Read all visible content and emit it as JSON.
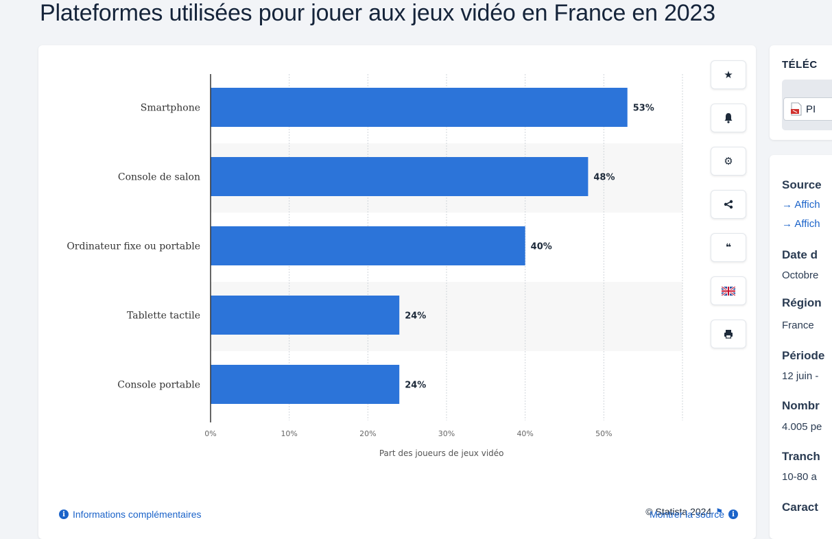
{
  "page": {
    "title": "Plateformes utilisées pour jouer aux jeux vidéo en France en 2023"
  },
  "toolbar": {
    "icons": [
      "star-icon",
      "bell-icon",
      "gear-icon",
      "share-icon",
      "quote-icon",
      "flag-uk-icon",
      "print-icon"
    ]
  },
  "footer": {
    "credit": "© Statista 2024",
    "show_source": "Montrer la source",
    "more_info": "Informations complémentaires"
  },
  "side": {
    "download_title": "TÉLÉC",
    "pdf_label": "PI",
    "source_label": "Source",
    "link1": "→ Affich",
    "link2": "→ Affich",
    "date_label": "Date d",
    "date_value": "Octobre",
    "region_label": "Région",
    "region_value": "France",
    "period_label": "Période",
    "period_value": "12 juin -",
    "number_label": "Nombr",
    "number_value": "4.005 pe",
    "age_label": "Tranch",
    "age_value": "10-80 a",
    "char_label": "Caract"
  },
  "colors": {
    "bar": "#2c74d9",
    "accent": "#1b63c9",
    "alt_row": "#f7f7f7"
  },
  "chart_data": {
    "type": "bar",
    "orientation": "horizontal",
    "categories": [
      "Smartphone",
      "Console de salon",
      "Ordinateur fixe ou portable",
      "Tablette tactile",
      "Console portable"
    ],
    "values": [
      53,
      48,
      40,
      24,
      24
    ],
    "value_labels": [
      "53%",
      "48%",
      "40%",
      "24%",
      "24%"
    ],
    "xlabel": "Part des joueurs de jeux vidéo",
    "ylabel": "",
    "xlim": [
      0,
      60
    ],
    "ticks": [
      0,
      10,
      20,
      30,
      40,
      50
    ],
    "tick_labels": [
      "0%",
      "10%",
      "20%",
      "30%",
      "40%",
      "50%"
    ],
    "grid": true
  }
}
